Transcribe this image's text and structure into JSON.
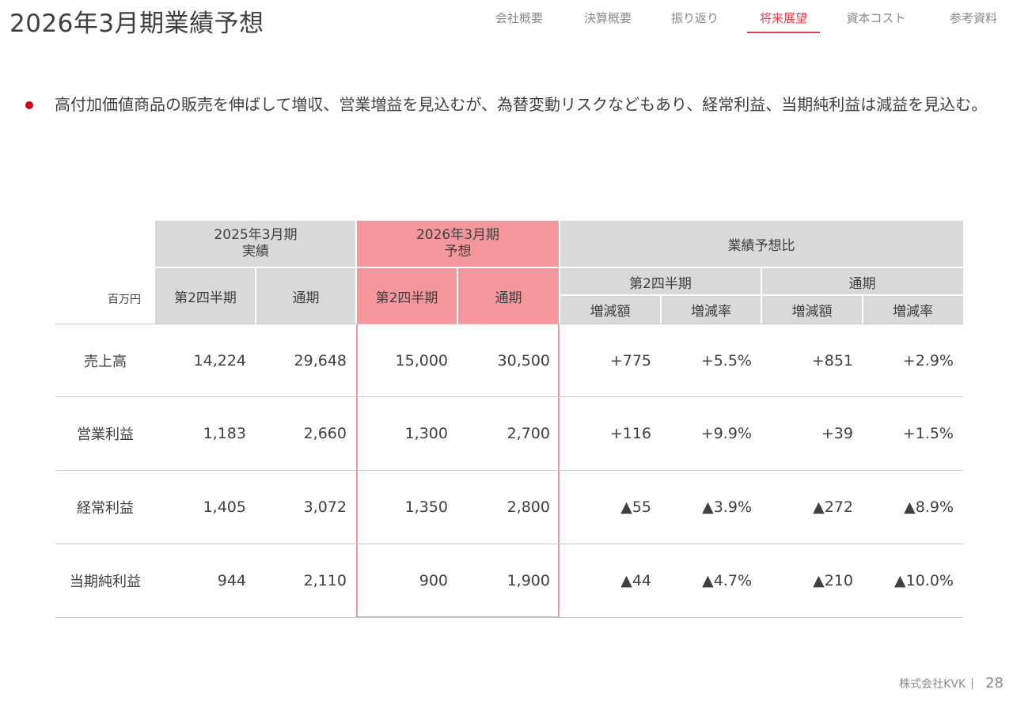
{
  "page": {
    "title": "2026年3月期業績予想"
  },
  "nav": {
    "items": [
      {
        "label": "会社概要"
      },
      {
        "label": "決算概要"
      },
      {
        "label": "振り返り"
      },
      {
        "label": "将来展望"
      },
      {
        "label": "資本コスト"
      },
      {
        "label": "参考資料"
      }
    ],
    "active_index": 3
  },
  "summary": {
    "text": "高付加価値商品の販売を伸ばして増収、営業増益を見込むが、為替変動リスクなどもあり、経常利益、当期純利益は減益を見込む。"
  },
  "table": {
    "unit": "百万円",
    "group_headers": {
      "actual": "2025年3月期\n実績",
      "forecast": "2026年3月期\n予想",
      "comparison": "業績予想比"
    },
    "period_headers": {
      "q2": "第2四半期",
      "full": "通期"
    },
    "change_headers": {
      "amount": "増減額",
      "rate": "増減率"
    },
    "rows": [
      {
        "label": "売上高",
        "actual_q2": "14,224",
        "actual_full": "29,648",
        "fc_q2": "15,000",
        "fc_full": "30,500",
        "q2_amt": "+775",
        "q2_rate": "+5.5%",
        "full_amt": "+851",
        "full_rate": "+2.9%"
      },
      {
        "label": "営業利益",
        "actual_q2": "1,183",
        "actual_full": "2,660",
        "fc_q2": "1,300",
        "fc_full": "2,700",
        "q2_amt": "+116",
        "q2_rate": "+9.9%",
        "full_amt": "+39",
        "full_rate": "+1.5%"
      },
      {
        "label": "経常利益",
        "actual_q2": "1,405",
        "actual_full": "3,072",
        "fc_q2": "1,350",
        "fc_full": "2,800",
        "q2_amt": "▲55",
        "q2_rate": "▲3.9%",
        "full_amt": "▲272",
        "full_rate": "▲8.9%"
      },
      {
        "label": "当期純利益",
        "actual_q2": "944",
        "actual_full": "2,110",
        "fc_q2": "900",
        "fc_full": "1,900",
        "q2_amt": "▲44",
        "q2_rate": "▲4.7%",
        "full_amt": "▲210",
        "full_rate": "▲10.0%"
      }
    ]
  },
  "footer": {
    "company": "株式会社KVK",
    "page_number": "28"
  },
  "colors": {
    "accent": "#e0404a",
    "bullet": "#d0021b",
    "header_gray": "#d9d9d9",
    "header_pink": "#f4979c"
  }
}
